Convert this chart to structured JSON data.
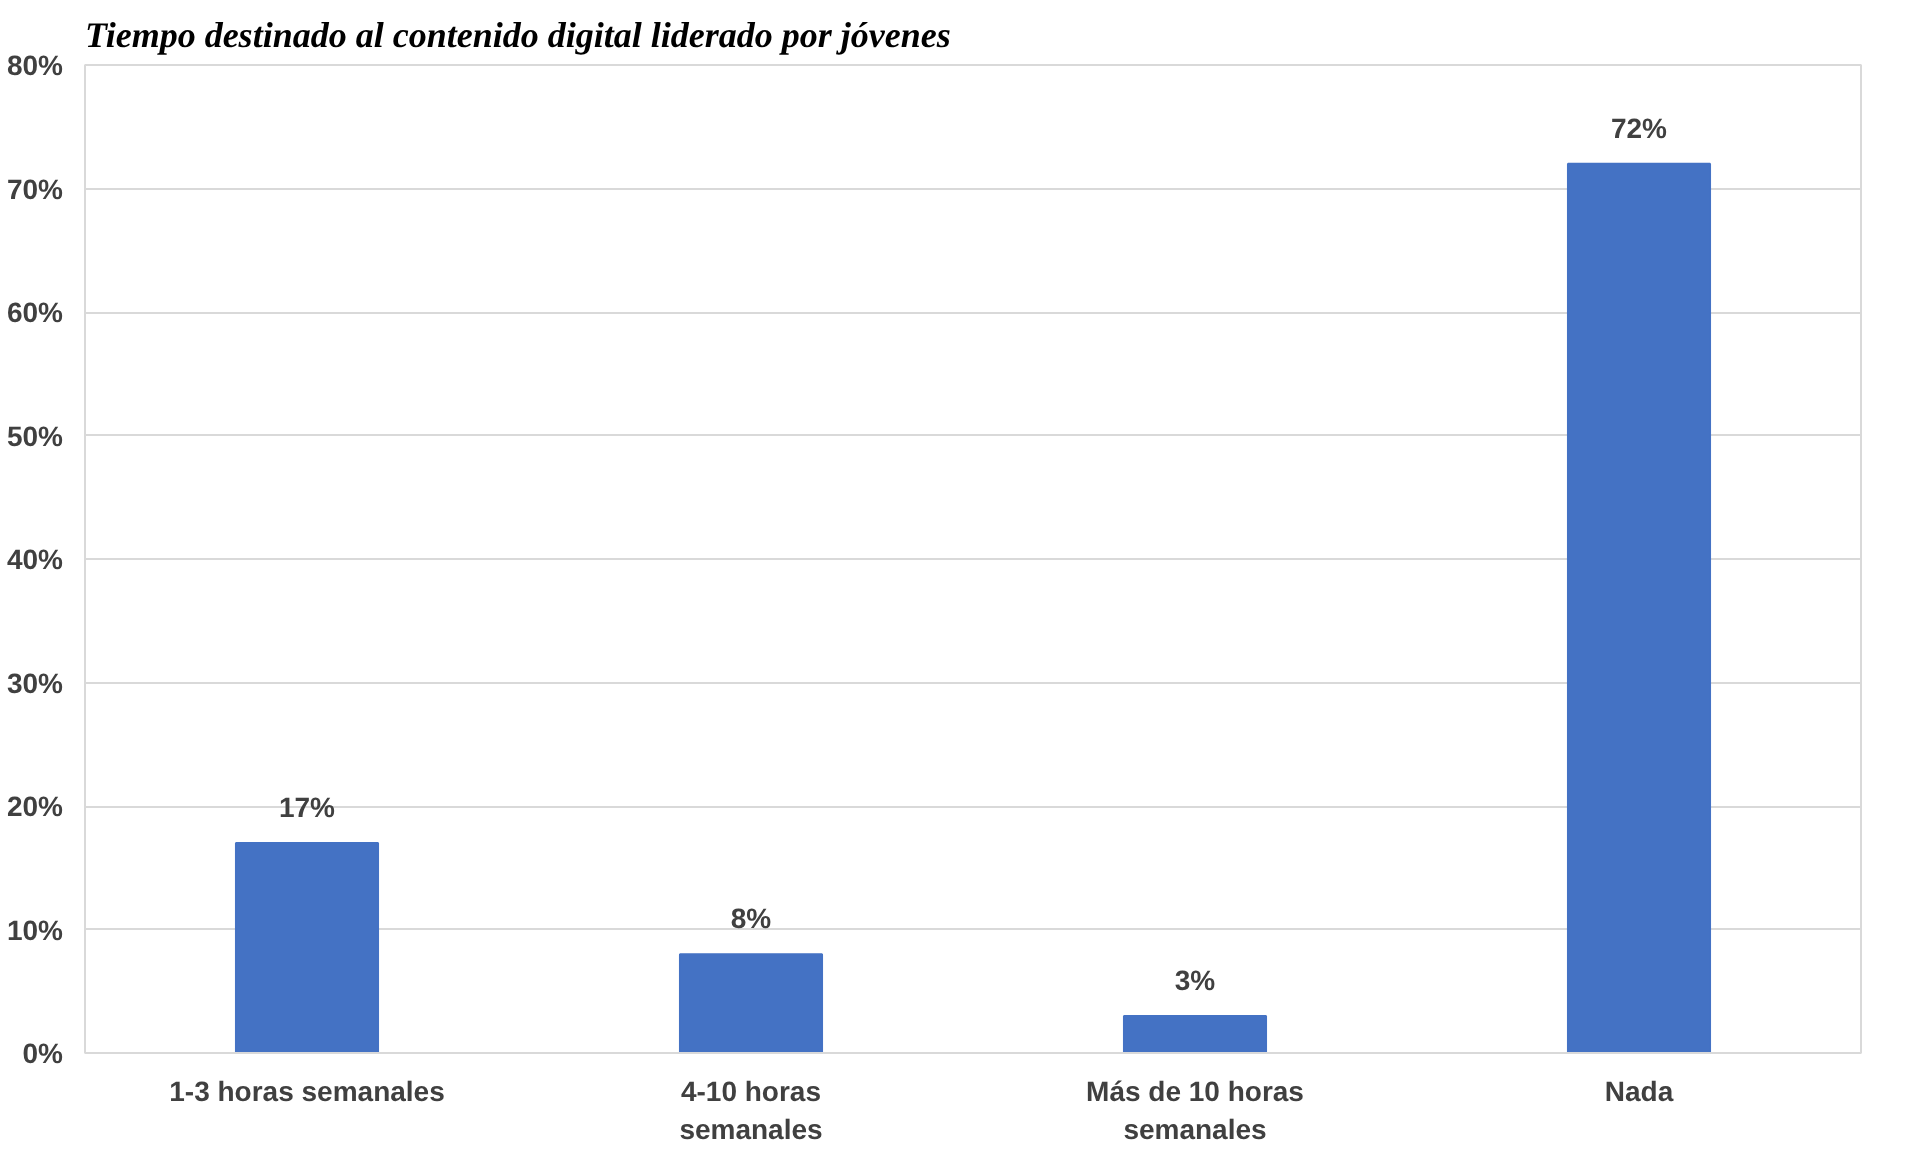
{
  "chart_data": {
    "type": "bar",
    "title": "Tiempo destinado al contenido digital liderado por jóvenes",
    "categories": [
      "1-3 horas semanales",
      "4-10 horas semanales",
      "Más de 10 horas semanales",
      "Nada"
    ],
    "values": [
      17,
      8,
      3,
      72
    ],
    "value_labels": [
      "17%",
      "8%",
      "3%",
      "72%"
    ],
    "color": "#4472c4",
    "ylim": [
      0,
      80
    ],
    "yticks": [
      {
        "value": 0,
        "label": "0%"
      },
      {
        "value": 10,
        "label": "10%"
      },
      {
        "value": 20,
        "label": "20%"
      },
      {
        "value": 30,
        "label": "30%"
      },
      {
        "value": 40,
        "label": "40%"
      },
      {
        "value": 50,
        "label": "50%"
      },
      {
        "value": 60,
        "label": "60%"
      },
      {
        "value": 70,
        "label": "70%"
      },
      {
        "value": 80,
        "label": "80%"
      }
    ],
    "grid": "y"
  }
}
